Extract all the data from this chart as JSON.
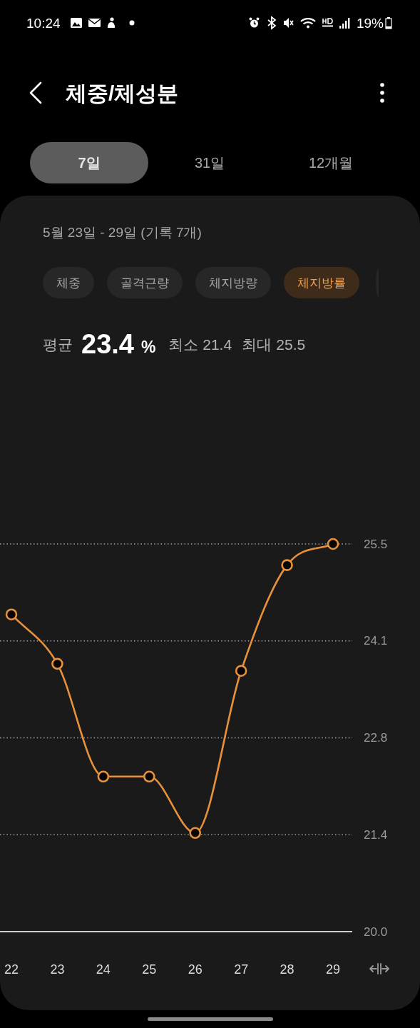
{
  "chart_data": {
    "type": "line",
    "title": "체중/체성분",
    "subtitle": "5월 23일 - 29일 (기록 7개)",
    "annotations": [
      "10:24",
      "19%",
      "7일",
      "31일",
      "12개월",
      "체중",
      "골격근량",
      "체지방량",
      "체지방률",
      "평균",
      "23.4",
      "%",
      "최소 21.4",
      "최대 25.5"
    ],
    "categories": [
      "22",
      "23",
      "24",
      "25",
      "26",
      "27",
      "28",
      "29"
    ],
    "series": [
      {
        "color": "#e8913a",
        "values": [
          24.5,
          23.8,
          22.2,
          22.2,
          21.4,
          23.7,
          25.2,
          25.5
        ]
      }
    ],
    "ylim": [
      20,
      25.5
    ],
    "yticks": [
      {
        "value": 20,
        "label": "20.0"
      },
      {
        "value": 21.375,
        "label": "21.4"
      },
      {
        "value": 22.75,
        "label": "22.8"
      },
      {
        "value": 24.125,
        "label": "24.1"
      },
      25.5
    ],
    "grid": "y",
    "marker": "circle",
    "line_style": "solid"
  }
}
